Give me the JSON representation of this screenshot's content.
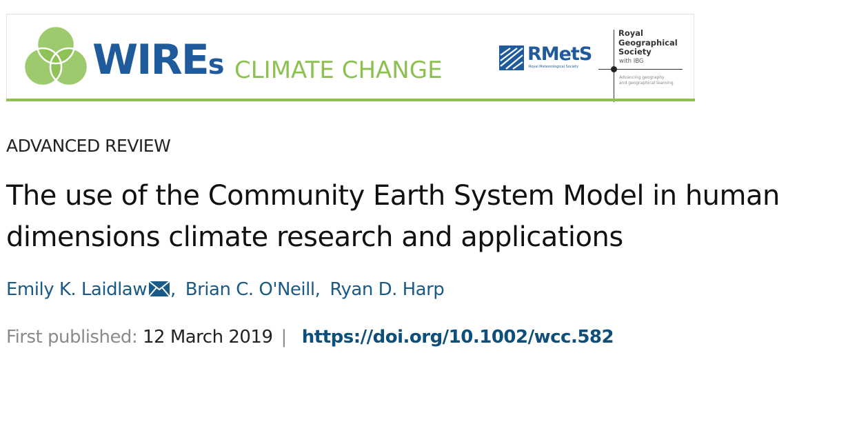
{
  "banner": {
    "journal_main": "WIRE",
    "journal_suffix": "s",
    "journal_sub": "CLIMATE CHANGE",
    "partner1": "RMetS",
    "partner1_sub": "Royal Meteorological Society",
    "partner2_lines": [
      "Royal",
      "Geographical",
      "Society"
    ],
    "partner2_with": "with IBG",
    "partner2_tagline": [
      "Advancing geography",
      "and geographical learning"
    ],
    "colors": {
      "brand_blue": "#1f5b9b",
      "brand_green": "#8cc152"
    }
  },
  "article": {
    "type": "ADVANCED REVIEW",
    "title_line1": "The use of the Community Earth System Model in human",
    "title_line2": "dimensions climate research and applications",
    "authors": [
      {
        "name": "Emily K. Laidlaw",
        "corresponding": true
      },
      {
        "name": "Brian C. O'Neill"
      },
      {
        "name": "Ryan D. Harp"
      }
    ],
    "first_published_label": "First published:",
    "first_published_date": "12 March 2019",
    "separator": "|",
    "doi": "https://doi.org/10.1002/wcc.582",
    "icons": {
      "corresponding": "envelope-icon"
    }
  }
}
